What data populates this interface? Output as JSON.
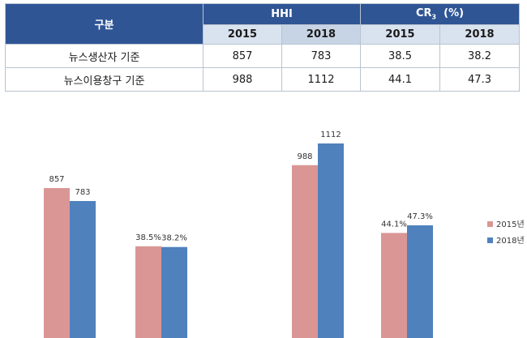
{
  "table": {
    "col_category": "구분",
    "group_hhi": "HHI",
    "group_cr": "CR",
    "group_cr_sub": "3",
    "group_cr_unit": "(%)",
    "years": [
      "2015",
      "2018",
      "2015",
      "2018"
    ],
    "rows": [
      {
        "label": "뉴스생산자 기준",
        "values": [
          "857",
          "783",
          "38.5",
          "38.2"
        ]
      },
      {
        "label": "뉴스이용창구 기준",
        "values": [
          "988",
          "1112",
          "44.1",
          "47.3"
        ]
      }
    ]
  },
  "colors": {
    "header_bg": "#2f5595",
    "subheader_bg": "#d9e2ef",
    "series_2015": "#d99694",
    "series_2018": "#4f81bd"
  },
  "chart_data": {
    "type": "bar",
    "series": [
      {
        "name": "2015년",
        "labels": [
          "857",
          "38.5%",
          "988",
          "44.1%"
        ],
        "values": [
          857,
          38.5,
          988,
          44.1
        ]
      },
      {
        "name": "2018년",
        "labels": [
          "783",
          "38.2%",
          "1112",
          "47.3%"
        ],
        "values": [
          783,
          38.2,
          1112,
          47.3
        ]
      }
    ],
    "legend_position": "right",
    "grid": false
  }
}
